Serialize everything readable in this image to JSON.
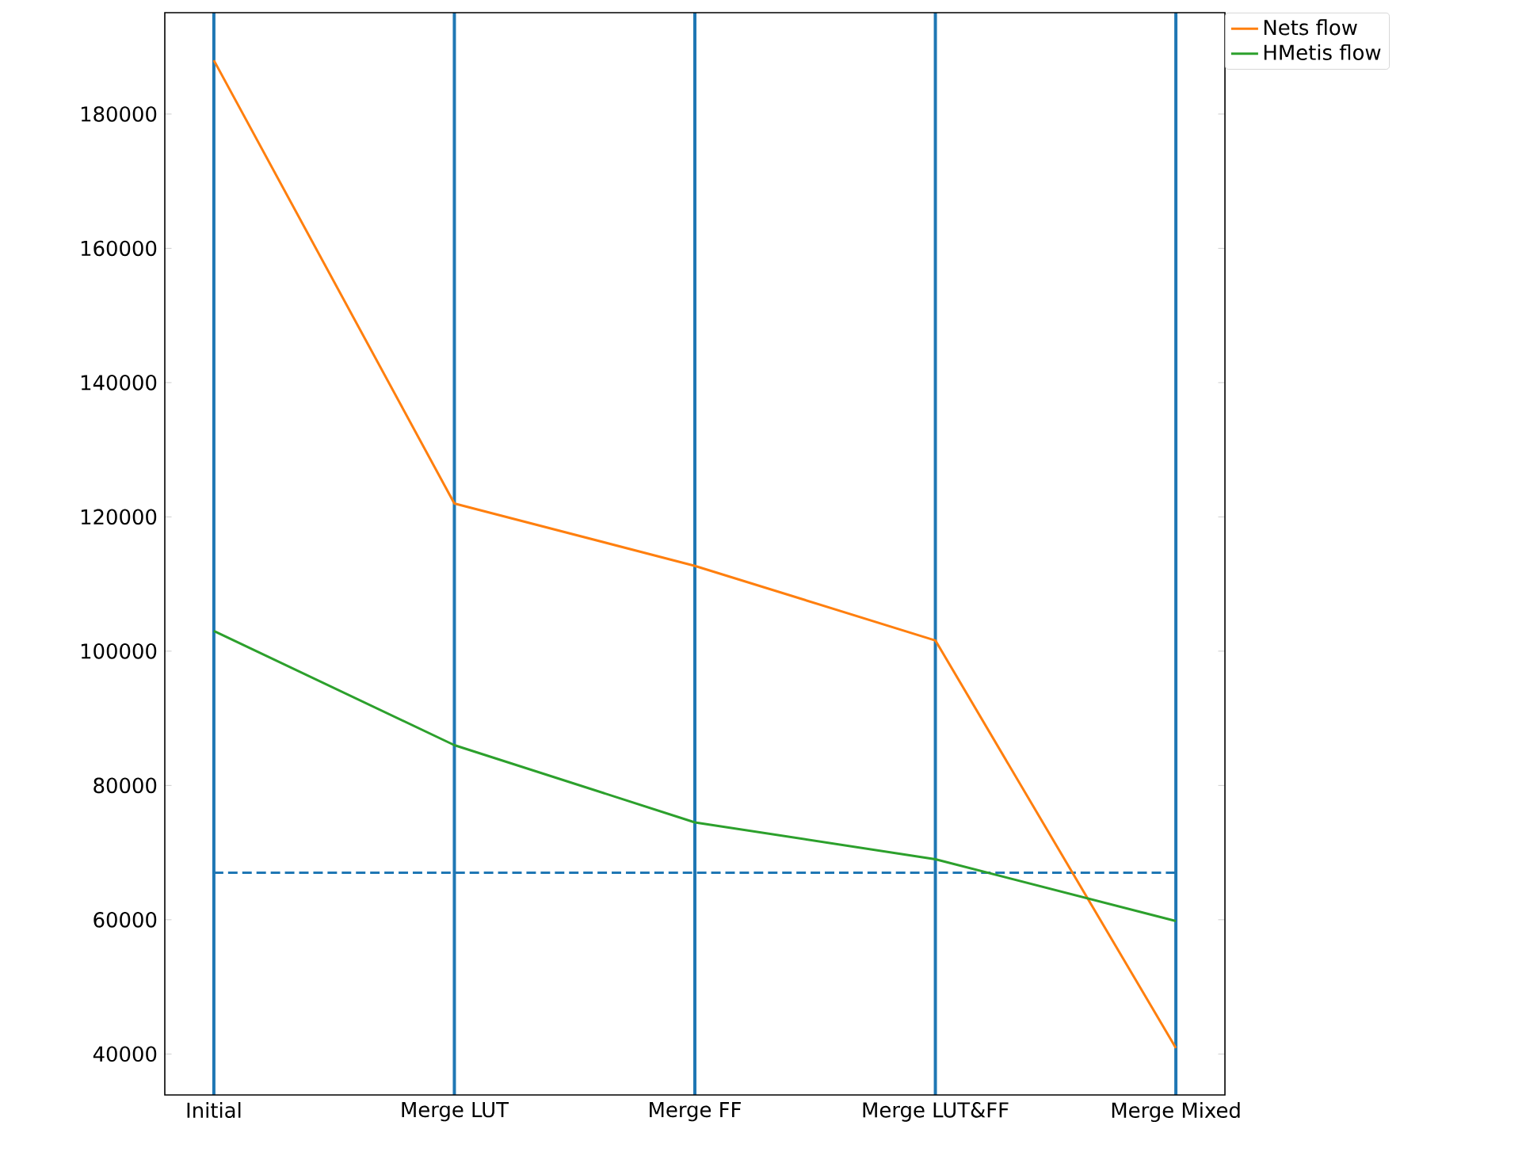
{
  "chart_data": {
    "type": "line",
    "categories": [
      "Initial",
      "Merge LUT",
      "Merge FF",
      "Merge LUT&FF",
      "Merge Mixed"
    ],
    "series": [
      {
        "name": "Nets flow",
        "color": "#ff7f0e",
        "values": [
          188000,
          122000,
          112700,
          101600,
          40900
        ]
      },
      {
        "name": "HMetis flow",
        "color": "#2ca02c",
        "values": [
          103000,
          86000,
          74500,
          69000,
          59800
        ]
      }
    ],
    "ylim": [
      33900,
      195100
    ],
    "yticks": [
      40000,
      60000,
      80000,
      100000,
      120000,
      140000,
      160000,
      180000
    ],
    "grid": "x",
    "legend": "top right",
    "marker": "none",
    "line_style": "solid",
    "ref_lines": [
      {
        "axis": "y",
        "value": 67000,
        "color": "#1f77b4",
        "line_style": "dashed"
      }
    ]
  }
}
